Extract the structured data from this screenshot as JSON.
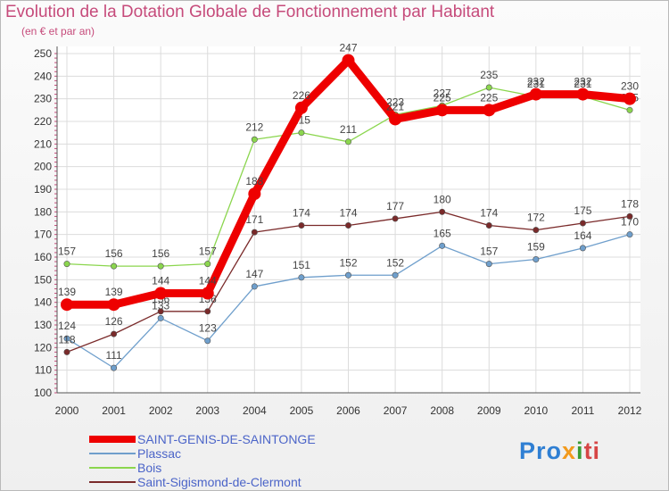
{
  "title": "Evolution de la Dotation Globale de Fonctionnement par Habitant",
  "subtitle": "(en € et par an)",
  "logo": [
    "Pro",
    "x",
    "i",
    "ti"
  ],
  "chart_data": {
    "type": "line",
    "title": "Evolution de la Dotation Globale de Fonctionnement par Habitant",
    "subtitle": "(en € et par an)",
    "x": [
      "2000",
      "2001",
      "2002",
      "2003",
      "2004",
      "2005",
      "2006",
      "2007",
      "2008",
      "2009",
      "2010",
      "2011",
      "2012"
    ],
    "yticks": [
      100,
      110,
      120,
      130,
      140,
      150,
      160,
      170,
      180,
      190,
      200,
      210,
      220,
      230,
      240,
      250
    ],
    "ylim": [
      100,
      250
    ],
    "grid": true,
    "legend_position": "bottom-left",
    "series": [
      {
        "name": "SAINT-GENIS-DE-SAINTONGE",
        "color": "#ee0000",
        "width": 9,
        "values": [
          139,
          139,
          144,
          144,
          188,
          226,
          247,
          221,
          225,
          225,
          232,
          232,
          230
        ]
      },
      {
        "name": "Plassac",
        "color": "#6f9fcc",
        "width": 1.3,
        "values": [
          124,
          111,
          133,
          123,
          147,
          151,
          152,
          152,
          165,
          157,
          159,
          164,
          170
        ]
      },
      {
        "name": "Bois",
        "color": "#8bd64e",
        "width": 1.3,
        "values": [
          157,
          156,
          156,
          157,
          212,
          215,
          211,
          223,
          227,
          235,
          231,
          231,
          225
        ]
      },
      {
        "name": "Saint-Sigismond-de-Clermont",
        "color": "#7a2a2a",
        "width": 1.3,
        "values": [
          118,
          126,
          136,
          136,
          171,
          174,
          174,
          177,
          180,
          174,
          172,
          175,
          178
        ]
      }
    ]
  }
}
